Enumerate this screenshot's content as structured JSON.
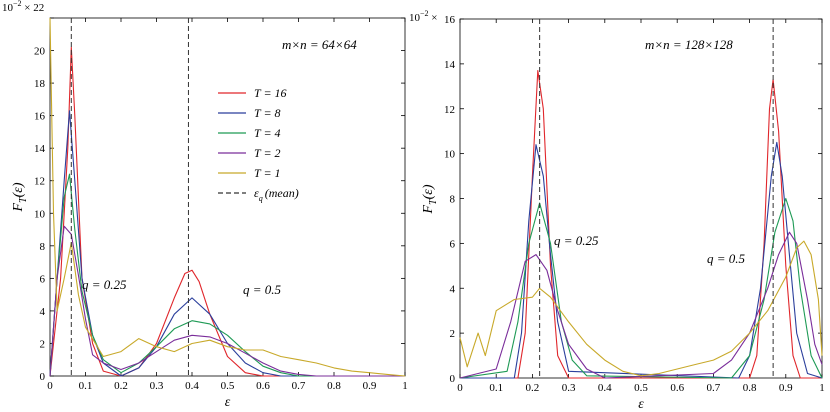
{
  "chart_data": [
    {
      "type": "line",
      "title": "m×n = 64×64",
      "xlabel": "ε",
      "ylabel": "F_T(ε)",
      "xlim": [
        0,
        1
      ],
      "ylim": [
        0,
        22
      ],
      "y_multiplier": "10^-2 ×",
      "xticks": [
        "0",
        "0.1",
        "0.2",
        "0.3",
        "0.4",
        "0.5",
        "0.6",
        "0.7",
        "0.8",
        "0.9",
        "1"
      ],
      "yticks": [
        "0",
        "2",
        "4",
        "6",
        "8",
        "10",
        "12",
        "14",
        "16",
        "18",
        "20",
        "22"
      ],
      "annotations": [
        "q = 0.25",
        "q = 0.5"
      ],
      "mean_lines": [
        0.06,
        0.39
      ],
      "legend": {
        "placement": "center",
        "entries": [
          "T = 16",
          "T = 8",
          "T = 4",
          "T = 2",
          "T = 1",
          "ε_q (mean)"
        ]
      },
      "series": [
        {
          "name": "T = 16",
          "color": "#e0262b",
          "x": [
            0,
            0.03,
            0.05,
            0.06,
            0.07,
            0.09,
            0.12,
            0.15,
            0.2,
            0.25,
            0.3,
            0.35,
            0.38,
            0.4,
            0.42,
            0.45,
            0.5,
            0.55,
            0.6,
            1.0
          ],
          "y": [
            0,
            6,
            14,
            20.2,
            16,
            6,
            2,
            0.3,
            0,
            0.5,
            2,
            4.8,
            6.3,
            6.5,
            5.8,
            3.8,
            1.2,
            0.2,
            0,
            0
          ]
        },
        {
          "name": "T = 8",
          "color": "#2b3f9c",
          "x": [
            0,
            0.02,
            0.04,
            0.055,
            0.07,
            0.09,
            0.12,
            0.15,
            0.2,
            0.25,
            0.3,
            0.35,
            0.4,
            0.45,
            0.5,
            0.55,
            0.6,
            0.65,
            1.0
          ],
          "y": [
            0,
            6,
            12,
            16.3,
            12,
            6,
            2.5,
            0.8,
            0,
            0.5,
            1.8,
            3.8,
            4.8,
            3.8,
            2,
            0.8,
            0.2,
            0,
            0
          ]
        },
        {
          "name": "T = 4",
          "color": "#1e9a55",
          "x": [
            0,
            0.02,
            0.04,
            0.055,
            0.07,
            0.09,
            0.12,
            0.15,
            0.2,
            0.25,
            0.3,
            0.35,
            0.4,
            0.45,
            0.5,
            0.55,
            0.6,
            0.65,
            0.7,
            1.0
          ],
          "y": [
            0,
            6,
            11,
            12.4,
            9,
            5.2,
            2.5,
            1,
            0.2,
            0.8,
            1.8,
            2.9,
            3.4,
            3.2,
            2.5,
            1.5,
            0.6,
            0.2,
            0,
            0
          ]
        },
        {
          "name": "T = 2",
          "color": "#7a2d9a",
          "x": [
            0,
            0.02,
            0.04,
            0.06,
            0.08,
            0.1,
            0.12,
            0.15,
            0.2,
            0.25,
            0.3,
            0.35,
            0.4,
            0.45,
            0.5,
            0.55,
            0.6,
            0.65,
            0.7,
            0.75,
            1.0
          ],
          "y": [
            0,
            6,
            9.2,
            8.7,
            6.2,
            3.5,
            1.3,
            0.8,
            0.4,
            0.8,
            1.5,
            2.2,
            2.5,
            2.4,
            2,
            1.4,
            0.8,
            0.3,
            0.1,
            0,
            0
          ]
        },
        {
          "name": "T = 1",
          "color": "#c8a92a",
          "x": [
            0,
            0.01,
            0.02,
            0.04,
            0.06,
            0.08,
            0.1,
            0.15,
            0.2,
            0.25,
            0.3,
            0.35,
            0.4,
            0.45,
            0.5,
            0.55,
            0.6,
            0.65,
            0.7,
            0.75,
            0.8,
            0.85,
            0.9,
            0.95,
            1.0
          ],
          "y": [
            22,
            10,
            4,
            6,
            8.2,
            5,
            3,
            1.2,
            1.5,
            2.3,
            1.8,
            1.5,
            2,
            2.2,
            1.8,
            1.6,
            1.6,
            1.2,
            1,
            0.8,
            0.5,
            0.3,
            0.2,
            0.1,
            0
          ]
        }
      ]
    },
    {
      "type": "line",
      "title": "m×n = 128×128",
      "xlabel": "ε",
      "ylabel": "F_T(ε)",
      "xlim": [
        0,
        1
      ],
      "ylim": [
        0,
        16
      ],
      "y_multiplier": "10^-2 ×",
      "xticks": [
        "0",
        "0.1",
        "0.2",
        "0.3",
        "0.4",
        "0.5",
        "0.6",
        "0.7",
        "0.8",
        "0.9",
        "1"
      ],
      "yticks": [
        "0",
        "2",
        "4",
        "6",
        "8",
        "10",
        "12",
        "14",
        "16"
      ],
      "annotations": [
        "q = 0.25",
        "q = 0.5"
      ],
      "mean_lines": [
        0.22,
        0.865
      ],
      "series": [
        {
          "name": "T = 16",
          "color": "#e0262b",
          "x": [
            0,
            0.16,
            0.18,
            0.2,
            0.215,
            0.23,
            0.25,
            0.27,
            0.3,
            0.8,
            0.82,
            0.84,
            0.855,
            0.865,
            0.88,
            0.9,
            0.92,
            0.94,
            1.0
          ],
          "y": [
            0,
            0,
            2,
            9,
            13.7,
            12,
            5,
            1,
            0,
            0,
            1,
            6,
            12,
            13.3,
            11,
            5,
            1,
            0,
            0
          ]
        },
        {
          "name": "T = 8",
          "color": "#2b3f9c",
          "x": [
            0,
            0.15,
            0.17,
            0.19,
            0.21,
            0.23,
            0.25,
            0.27,
            0.3,
            0.77,
            0.8,
            0.83,
            0.86,
            0.875,
            0.89,
            0.91,
            0.93,
            0.96,
            1.0
          ],
          "y": [
            0,
            0,
            2,
            7,
            10.4,
            9,
            5.5,
            2.5,
            0.3,
            0,
            1,
            4,
            9,
            10.5,
            9,
            5.5,
            2,
            0.2,
            0
          ]
        },
        {
          "name": "T = 4",
          "color": "#1e9a55",
          "x": [
            0,
            0.13,
            0.16,
            0.19,
            0.22,
            0.25,
            0.28,
            0.31,
            0.35,
            0.75,
            0.8,
            0.84,
            0.87,
            0.9,
            0.92,
            0.94,
            0.97,
            1.0
          ],
          "y": [
            0,
            0.3,
            2.5,
            6,
            7.8,
            6,
            2.5,
            0.8,
            0.1,
            0,
            1,
            3.5,
            6.5,
            8,
            7,
            4,
            1,
            0
          ]
        },
        {
          "name": "T = 2",
          "color": "#7a2d9a",
          "x": [
            0,
            0.1,
            0.14,
            0.18,
            0.21,
            0.24,
            0.27,
            0.3,
            0.35,
            0.4,
            0.7,
            0.75,
            0.8,
            0.85,
            0.88,
            0.91,
            0.93,
            0.96,
            0.98,
            1.0
          ],
          "y": [
            0,
            0.4,
            2.5,
            5.2,
            5.5,
            4.8,
            3,
            1.5,
            0.4,
            0,
            0.2,
            0.8,
            2,
            4,
            5.5,
            6.5,
            6,
            3.5,
            1.5,
            0.6
          ]
        },
        {
          "name": "T = 1",
          "color": "#c8a92a",
          "x": [
            0,
            0.02,
            0.05,
            0.07,
            0.1,
            0.15,
            0.2,
            0.22,
            0.25,
            0.3,
            0.35,
            0.4,
            0.45,
            0.5,
            0.55,
            0.6,
            0.65,
            0.7,
            0.75,
            0.8,
            0.85,
            0.9,
            0.93,
            0.95,
            0.97,
            0.99,
            1.0
          ],
          "y": [
            1.8,
            0.5,
            2,
            1,
            3,
            3.5,
            3.6,
            4,
            3.6,
            2.5,
            1.5,
            0.8,
            0.3,
            0.1,
            0.2,
            0.4,
            0.6,
            0.8,
            1.2,
            2,
            3,
            4.5,
            5.8,
            6.1,
            5.5,
            3.5,
            1
          ]
        }
      ]
    }
  ]
}
